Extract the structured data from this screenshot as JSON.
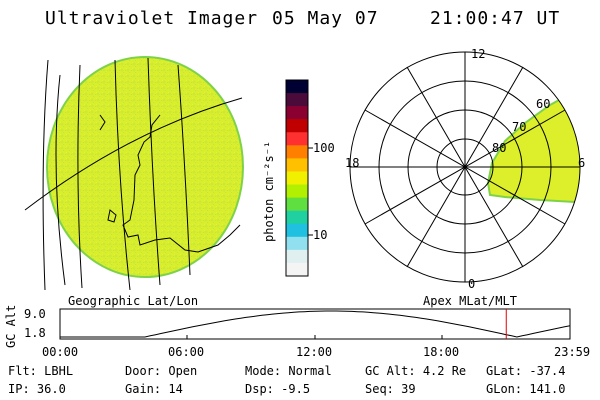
{
  "header": {
    "instrument": "Ultraviolet Imager",
    "date": "05 May 07",
    "time": "21:00:47 UT"
  },
  "colorbar": {
    "unit_label": "photon cm⁻²s⁻¹",
    "ticks": [
      "100",
      "10"
    ],
    "colors": [
      "#000033",
      "#4a0a3a",
      "#8a0030",
      "#c00000",
      "#ff3030",
      "#ff8000",
      "#ffc000",
      "#f0f000",
      "#b0f000",
      "#60e040",
      "#20d0a0",
      "#20c0e0",
      "#90e0f0",
      "#e0f0f0",
      "#f4f4f4"
    ]
  },
  "panels": {
    "geographic_label": "Geographic Lat/Lon",
    "apex_label": "Apex MLat/MLT"
  },
  "polar": {
    "mlt_labels": {
      "top": "12",
      "left": "18",
      "right": "6",
      "bottom": "0"
    },
    "lat_labels": [
      "60",
      "70",
      "80"
    ]
  },
  "altitude_plot": {
    "ylabel": "GC Alt",
    "yticks": [
      "9.0",
      "1.8"
    ],
    "xticks": [
      "00:00",
      "06:00",
      "12:00",
      "18:00",
      "23:59"
    ],
    "current_marker_hour": 21.0
  },
  "info": {
    "row1": [
      {
        "k": "Flt:",
        "v": "LBHL"
      },
      {
        "k": "Door:",
        "v": "Open"
      },
      {
        "k": "Mode:",
        "v": "Normal"
      },
      {
        "k": "GC Alt:",
        "v": "4.2 Re"
      },
      {
        "k": "GLat:",
        "v": "-37.4"
      }
    ],
    "row2": [
      {
        "k": "IP:",
        "v": "36.0"
      },
      {
        "k": "Gain:",
        "v": "14"
      },
      {
        "k": "Dsp:",
        "v": "-9.5"
      },
      {
        "k": "Seq:",
        "v": "39"
      },
      {
        "k": "GLon:",
        "v": "141.0"
      }
    ]
  },
  "colors": {
    "image_fill": "#dcef2a",
    "image_edge": "#7ed24a",
    "marker": "#e00000"
  }
}
